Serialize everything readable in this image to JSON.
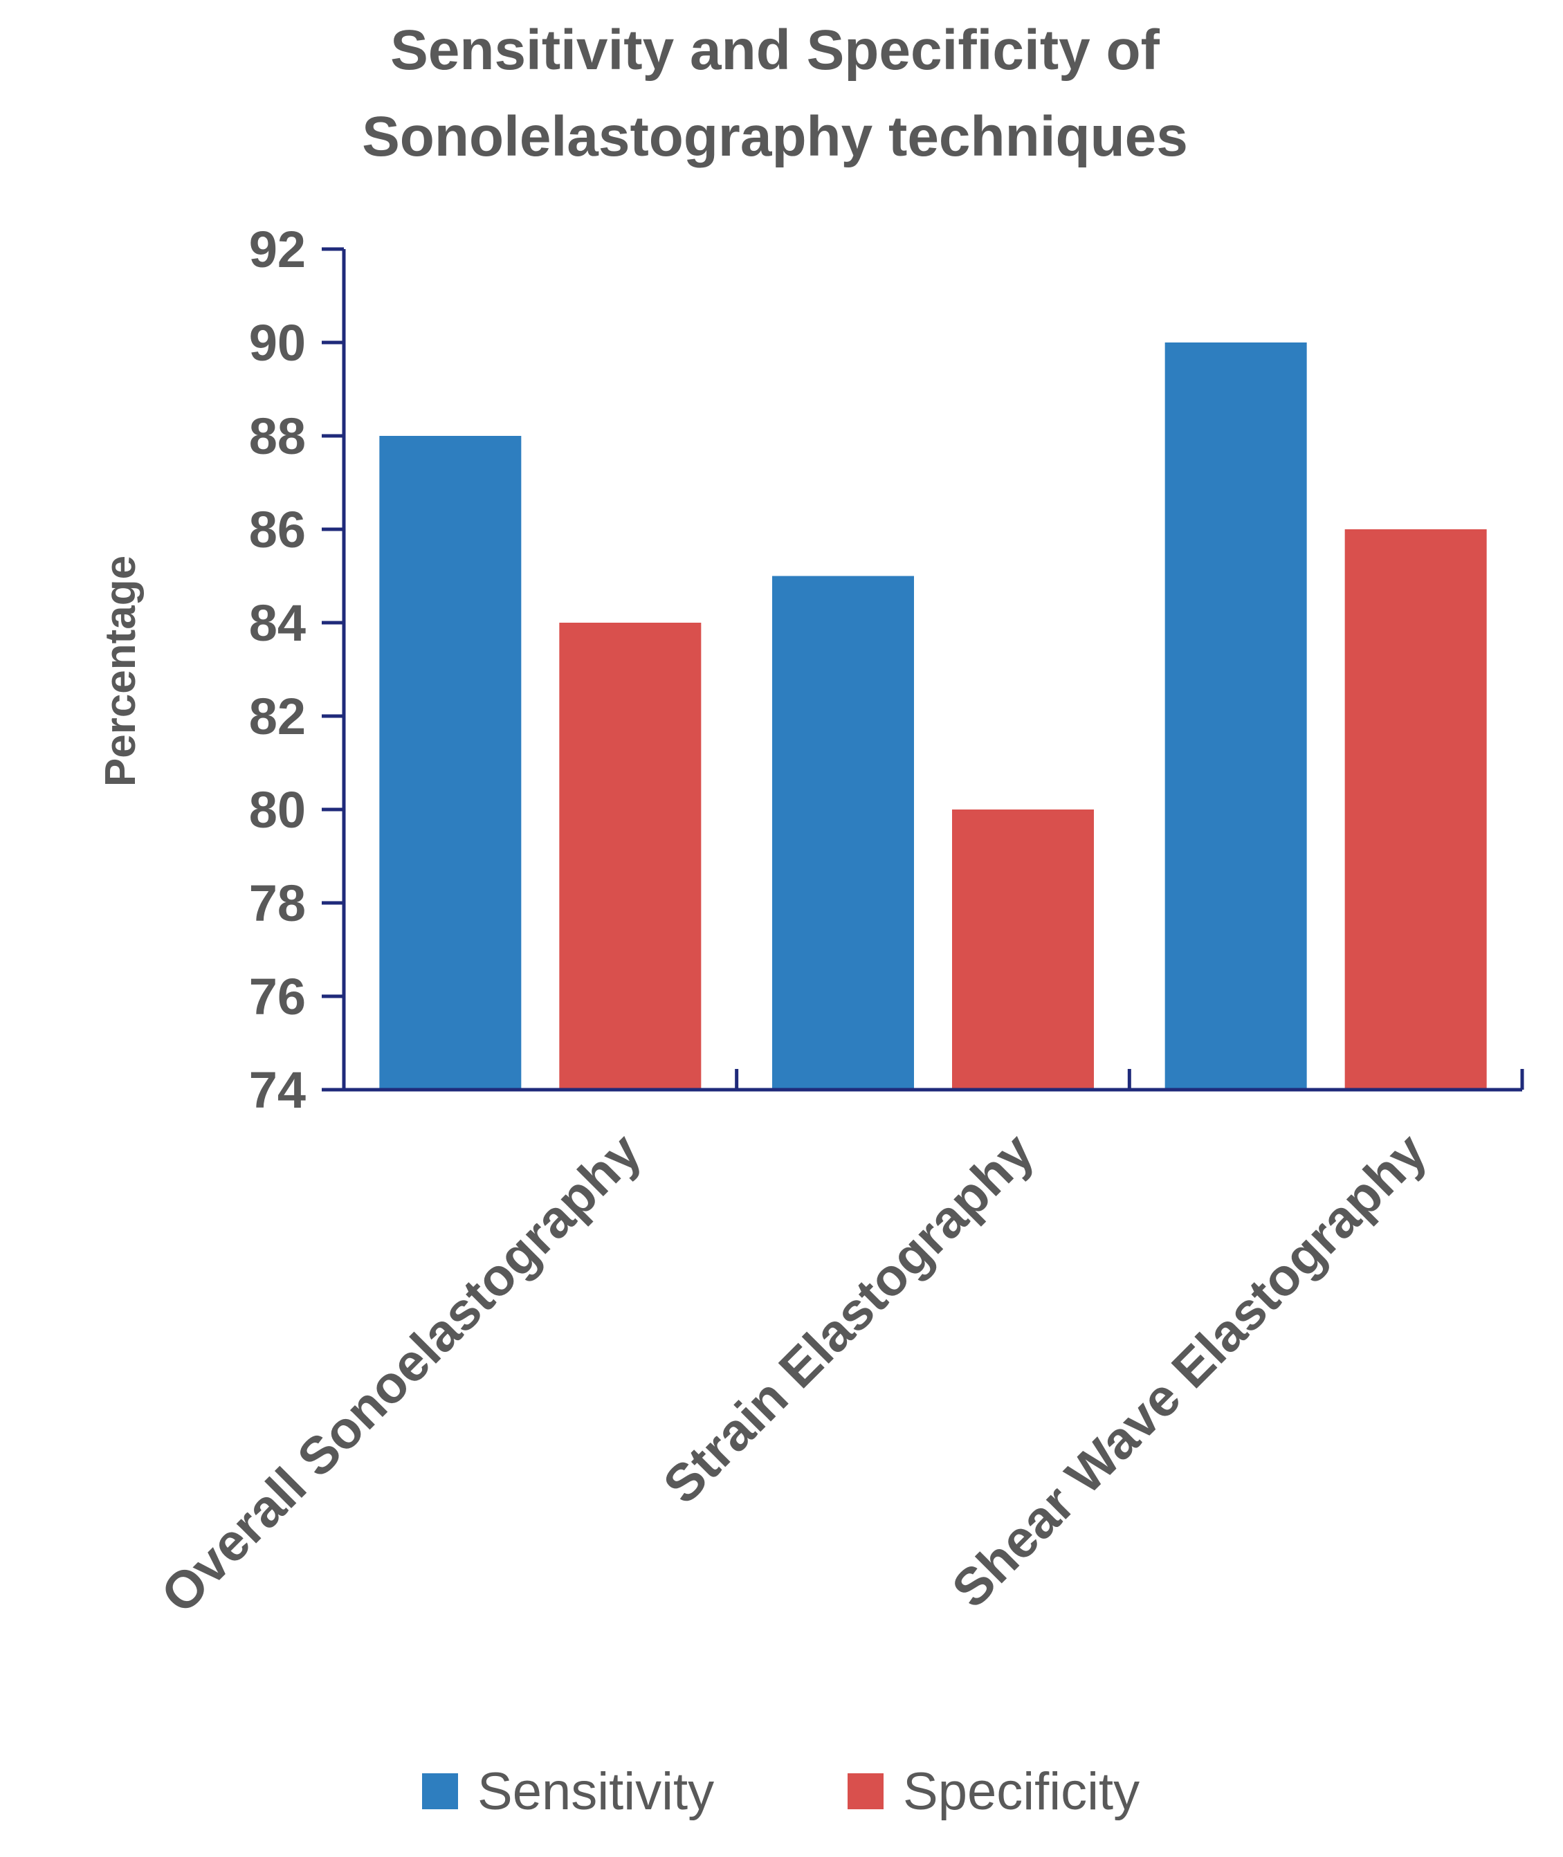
{
  "chart_data": {
    "type": "bar",
    "title_lines": [
      "Sensitivity and Specificity of",
      "Sonolelastography techniques"
    ],
    "xlabel": "",
    "ylabel": "Percentage",
    "ylim": [
      74,
      92
    ],
    "yticks": [
      "74",
      "76",
      "78",
      "80",
      "82",
      "84",
      "86",
      "88",
      "90",
      "92"
    ],
    "categories": [
      "Overall Sonoelastography",
      "Strain Elastography",
      "Shear Wave Elastography"
    ],
    "series": [
      {
        "name": "Sensitivity",
        "color": "#2E7EBF",
        "values": [
          88,
          85,
          90
        ]
      },
      {
        "name": "Specificity",
        "color": "#D9504D",
        "values": [
          84,
          80,
          86
        ]
      }
    ],
    "axis_color": "#1F2A7A",
    "grid": false,
    "legend_position": "bottom"
  }
}
